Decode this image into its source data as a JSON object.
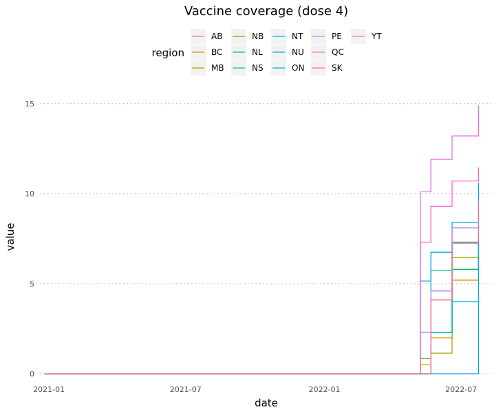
{
  "chart_data": {
    "type": "line",
    "title": "Vaccine coverage (dose 4)",
    "xlabel": "date",
    "ylabel": "value",
    "x_tick_labels": [
      "2021-01",
      "2021-07",
      "2022-01",
      "2022-07"
    ],
    "x_tick_dates": [
      "2021-01-01",
      "2021-07-01",
      "2022-01-01",
      "2022-07-01"
    ],
    "y_ticks": [
      0,
      5,
      10,
      15
    ],
    "xlim": [
      "2020-12-20",
      "2022-08-10"
    ],
    "ylim": [
      -0.4,
      15.6
    ],
    "grid": "horizontal dotted",
    "legend_title": "region",
    "legend_position": "top",
    "series": [
      {
        "name": "AB",
        "color": "#F8766D",
        "points": [
          [
            "2020-12-26",
            0
          ],
          [
            "2022-07-24",
            0
          ]
        ]
      },
      {
        "name": "BC",
        "color": "#DB8E00",
        "points": [
          [
            "2020-12-26",
            0
          ],
          [
            "2022-05-08",
            0
          ],
          [
            "2022-05-08",
            0.5
          ],
          [
            "2022-05-22",
            0.5
          ],
          [
            "2022-05-22",
            2.0
          ],
          [
            "2022-06-19",
            2.0
          ],
          [
            "2022-06-19",
            5.2
          ],
          [
            "2022-07-24",
            5.2
          ],
          [
            "2022-07-24",
            7.3
          ]
        ]
      },
      {
        "name": "MB",
        "color": "#AEA200",
        "points": [
          [
            "2020-12-26",
            0
          ],
          [
            "2022-05-22",
            0
          ],
          [
            "2022-05-22",
            1.15
          ],
          [
            "2022-06-19",
            1.15
          ],
          [
            "2022-06-19",
            6.45
          ],
          [
            "2022-07-24",
            6.45
          ],
          [
            "2022-07-24",
            7.7
          ]
        ]
      },
      {
        "name": "NB",
        "color": "#64B200",
        "points": [
          [
            "2020-12-26",
            0
          ],
          [
            "2022-05-08",
            0
          ],
          [
            "2022-05-08",
            0.85
          ],
          [
            "2022-05-22",
            0.85
          ],
          [
            "2022-05-22",
            2.3
          ],
          [
            "2022-06-19",
            2.3
          ],
          [
            "2022-06-19",
            7.3
          ],
          [
            "2022-07-24",
            7.3
          ],
          [
            "2022-07-24",
            7.6
          ]
        ]
      },
      {
        "name": "NL",
        "color": "#00BD5C",
        "points": [
          [
            "2020-12-26",
            0
          ],
          [
            "2022-05-22",
            0
          ],
          [
            "2022-05-22",
            2.3
          ],
          [
            "2022-06-19",
            2.3
          ],
          [
            "2022-06-19",
            5.8
          ],
          [
            "2022-07-24",
            5.8
          ],
          [
            "2022-07-24",
            7.4
          ]
        ]
      },
      {
        "name": "NS",
        "color": "#00C1A7",
        "points": [
          [
            "2020-12-26",
            0
          ],
          [
            "2022-05-22",
            0
          ],
          [
            "2022-05-22",
            5.75
          ],
          [
            "2022-06-19",
            5.75
          ],
          [
            "2022-06-19",
            7.3
          ],
          [
            "2022-07-24",
            7.3
          ]
        ]
      },
      {
        "name": "NT",
        "color": "#00BADE",
        "points": [
          [
            "2020-12-26",
            0
          ],
          [
            "2022-05-22",
            0
          ],
          [
            "2022-05-22",
            2.3
          ],
          [
            "2022-06-19",
            2.3
          ],
          [
            "2022-06-19",
            4.0
          ],
          [
            "2022-07-24",
            4.0
          ]
        ]
      },
      {
        "name": "NU",
        "color": "#00A6FF",
        "points": [
          [
            "2020-12-26",
            0
          ],
          [
            "2022-07-24",
            0
          ],
          [
            "2022-07-24",
            10.6
          ]
        ]
      },
      {
        "name": "ON",
        "color": "#00A6E8",
        "points": [
          [
            "2020-12-26",
            0
          ],
          [
            "2022-05-08",
            0
          ],
          [
            "2022-05-08",
            5.15
          ],
          [
            "2022-05-22",
            5.15
          ],
          [
            "2022-05-22",
            6.75
          ],
          [
            "2022-06-19",
            6.75
          ],
          [
            "2022-06-19",
            8.4
          ],
          [
            "2022-07-24",
            8.4
          ],
          [
            "2022-07-24",
            8.8
          ]
        ]
      },
      {
        "name": "PE",
        "color": "#B385FF",
        "points": [
          [
            "2020-12-26",
            0
          ],
          [
            "2022-05-08",
            0
          ],
          [
            "2022-05-08",
            2.3
          ],
          [
            "2022-05-22",
            2.3
          ],
          [
            "2022-05-22",
            4.6
          ],
          [
            "2022-06-19",
            4.6
          ],
          [
            "2022-06-19",
            8.1
          ],
          [
            "2022-07-24",
            8.1
          ],
          [
            "2022-07-24",
            8.6
          ]
        ]
      },
      {
        "name": "QC",
        "color": "#E76BF3",
        "points": [
          [
            "2020-12-26",
            0
          ],
          [
            "2022-05-08",
            0
          ],
          [
            "2022-05-08",
            10.1
          ],
          [
            "2022-05-22",
            10.1
          ],
          [
            "2022-05-22",
            11.9
          ],
          [
            "2022-06-19",
            11.9
          ],
          [
            "2022-06-19",
            13.2
          ],
          [
            "2022-07-24",
            13.2
          ],
          [
            "2022-07-24",
            14.9
          ]
        ]
      },
      {
        "name": "SK",
        "color": "#FF61C9",
        "points": [
          [
            "2020-12-26",
            0
          ],
          [
            "2022-05-08",
            0
          ],
          [
            "2022-05-08",
            7.3
          ],
          [
            "2022-05-22",
            7.3
          ],
          [
            "2022-05-22",
            9.3
          ],
          [
            "2022-06-19",
            9.3
          ],
          [
            "2022-06-19",
            10.7
          ],
          [
            "2022-07-24",
            10.7
          ],
          [
            "2022-07-24",
            11.45
          ]
        ]
      },
      {
        "name": "YT",
        "color": "#FF6C91",
        "points": [
          [
            "2020-12-26",
            0
          ],
          [
            "2022-05-22",
            0
          ],
          [
            "2022-05-22",
            4.1
          ],
          [
            "2022-06-19",
            4.1
          ],
          [
            "2022-06-19",
            7.25
          ],
          [
            "2022-07-24",
            7.25
          ],
          [
            "2022-07-24",
            9.6
          ]
        ]
      }
    ]
  }
}
